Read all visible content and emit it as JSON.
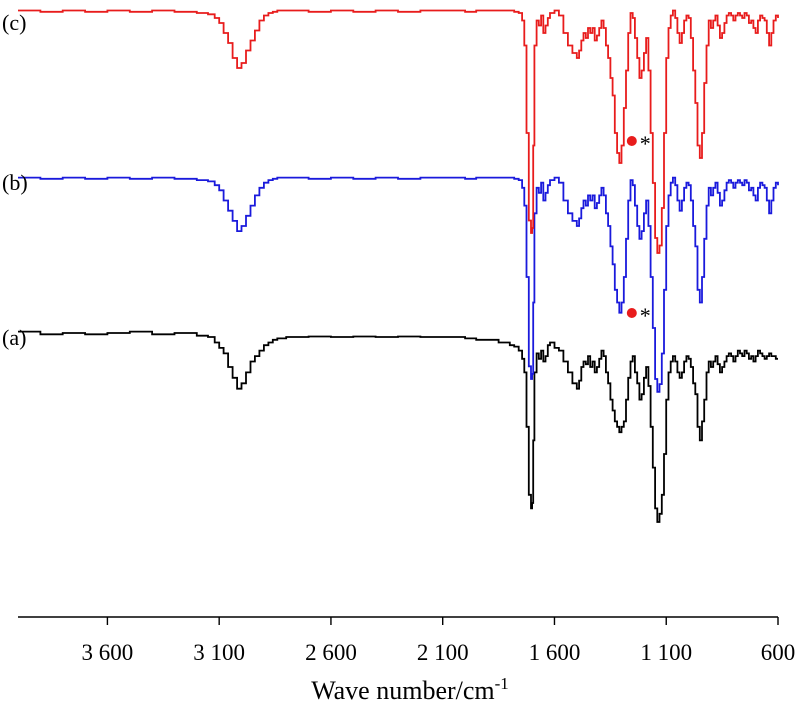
{
  "chart_data": {
    "type": "line",
    "xlabel_main": "Wave number/cm",
    "xlabel_sup": "-1",
    "x_reversed": true,
    "xlim": [
      4000,
      600
    ],
    "x_ticks": [
      3600,
      3100,
      2600,
      2100,
      1600,
      1100,
      600
    ],
    "x_tick_labels": [
      "3 600",
      "3 100",
      "2 600",
      "2 100",
      "1 600",
      "1 100",
      "600"
    ],
    "grid": false,
    "legend": "none",
    "series": [
      {
        "label": "(a)",
        "color": "#000000",
        "x": [
          4000,
          3900,
          3800,
          3700,
          3600,
          3500,
          3400,
          3300,
          3200,
          3150,
          3120,
          3100,
          3080,
          3060,
          3040,
          3020,
          3000,
          2980,
          2960,
          2940,
          2920,
          2900,
          2880,
          2860,
          2840,
          2800,
          2700,
          2600,
          2500,
          2400,
          2300,
          2200,
          2100,
          2000,
          1950,
          1900,
          1850,
          1800,
          1780,
          1760,
          1745,
          1735,
          1725,
          1715,
          1705,
          1700,
          1695,
          1690,
          1680,
          1670,
          1660,
          1650,
          1640,
          1630,
          1620,
          1600,
          1580,
          1560,
          1540,
          1520,
          1500,
          1490,
          1480,
          1470,
          1460,
          1450,
          1440,
          1430,
          1420,
          1410,
          1400,
          1390,
          1380,
          1370,
          1360,
          1350,
          1340,
          1330,
          1320,
          1310,
          1300,
          1290,
          1280,
          1270,
          1260,
          1250,
          1240,
          1230,
          1220,
          1210,
          1200,
          1190,
          1180,
          1170,
          1160,
          1150,
          1140,
          1130,
          1120,
          1110,
          1100,
          1090,
          1080,
          1070,
          1060,
          1050,
          1040,
          1030,
          1020,
          1010,
          1000,
          990,
          980,
          970,
          960,
          950,
          940,
          930,
          920,
          910,
          900,
          890,
          880,
          870,
          860,
          850,
          840,
          830,
          820,
          810,
          800,
          790,
          780,
          770,
          760,
          750,
          740,
          730,
          720,
          710,
          700,
          690,
          680,
          670,
          660,
          650,
          640,
          630,
          620,
          610,
          600
        ],
        "y": [
          0.95,
          0.94,
          0.945,
          0.94,
          0.945,
          0.95,
          0.94,
          0.945,
          0.935,
          0.93,
          0.91,
          0.89,
          0.87,
          0.82,
          0.78,
          0.74,
          0.76,
          0.8,
          0.84,
          0.86,
          0.88,
          0.9,
          0.91,
          0.92,
          0.925,
          0.93,
          0.932,
          0.93,
          0.932,
          0.93,
          0.932,
          0.93,
          0.93,
          0.925,
          0.92,
          0.92,
          0.91,
          0.9,
          0.895,
          0.88,
          0.85,
          0.8,
          0.6,
          0.35,
          0.3,
          0.32,
          0.55,
          0.8,
          0.87,
          0.85,
          0.88,
          0.84,
          0.86,
          0.9,
          0.91,
          0.89,
          0.88,
          0.84,
          0.8,
          0.76,
          0.74,
          0.77,
          0.82,
          0.84,
          0.83,
          0.86,
          0.82,
          0.84,
          0.8,
          0.82,
          0.85,
          0.88,
          0.86,
          0.8,
          0.76,
          0.7,
          0.66,
          0.62,
          0.6,
          0.58,
          0.6,
          0.62,
          0.7,
          0.78,
          0.84,
          0.86,
          0.8,
          0.76,
          0.7,
          0.72,
          0.78,
          0.82,
          0.75,
          0.6,
          0.45,
          0.3,
          0.25,
          0.28,
          0.35,
          0.5,
          0.7,
          0.8,
          0.84,
          0.86,
          0.84,
          0.8,
          0.78,
          0.8,
          0.84,
          0.86,
          0.85,
          0.82,
          0.76,
          0.72,
          0.6,
          0.55,
          0.62,
          0.7,
          0.8,
          0.84,
          0.82,
          0.84,
          0.86,
          0.83,
          0.8,
          0.82,
          0.84,
          0.86,
          0.87,
          0.86,
          0.84,
          0.86,
          0.88,
          0.87,
          0.86,
          0.88,
          0.87,
          0.85,
          0.86,
          0.84,
          0.86,
          0.88,
          0.87,
          0.86,
          0.85,
          0.86,
          0.87,
          0.86,
          0.86,
          0.85,
          0.85
        ]
      },
      {
        "label": "(b)",
        "color": "#1a1adc",
        "x": [
          4000,
          3900,
          3800,
          3700,
          3600,
          3500,
          3400,
          3300,
          3200,
          3150,
          3120,
          3100,
          3080,
          3060,
          3040,
          3020,
          3000,
          2980,
          2960,
          2940,
          2920,
          2900,
          2880,
          2860,
          2840,
          2800,
          2700,
          2600,
          2500,
          2400,
          2300,
          2200,
          2100,
          2000,
          1950,
          1900,
          1850,
          1800,
          1780,
          1760,
          1745,
          1735,
          1725,
          1715,
          1705,
          1700,
          1695,
          1690,
          1680,
          1670,
          1660,
          1650,
          1640,
          1630,
          1620,
          1600,
          1580,
          1560,
          1540,
          1520,
          1500,
          1490,
          1480,
          1470,
          1460,
          1450,
          1440,
          1430,
          1420,
          1410,
          1400,
          1390,
          1380,
          1370,
          1360,
          1350,
          1340,
          1330,
          1320,
          1310,
          1300,
          1290,
          1280,
          1270,
          1260,
          1250,
          1240,
          1230,
          1220,
          1210,
          1200,
          1190,
          1180,
          1170,
          1160,
          1150,
          1140,
          1130,
          1120,
          1110,
          1100,
          1090,
          1080,
          1070,
          1060,
          1050,
          1040,
          1030,
          1020,
          1010,
          1000,
          990,
          980,
          970,
          960,
          950,
          940,
          930,
          920,
          910,
          900,
          890,
          880,
          870,
          860,
          850,
          840,
          830,
          820,
          810,
          800,
          790,
          780,
          770,
          760,
          750,
          740,
          730,
          720,
          710,
          700,
          690,
          680,
          670,
          660,
          650,
          640,
          630,
          620,
          610,
          600
        ],
        "y": [
          0.99,
          0.985,
          0.99,
          0.985,
          0.99,
          0.985,
          0.99,
          0.985,
          0.98,
          0.975,
          0.96,
          0.94,
          0.9,
          0.86,
          0.82,
          0.78,
          0.8,
          0.84,
          0.88,
          0.92,
          0.95,
          0.97,
          0.98,
          0.985,
          0.99,
          0.99,
          0.985,
          0.99,
          0.985,
          0.99,
          0.985,
          0.99,
          0.99,
          0.985,
          0.99,
          0.99,
          0.99,
          0.99,
          0.985,
          0.98,
          0.95,
          0.88,
          0.6,
          0.25,
          0.2,
          0.22,
          0.5,
          0.85,
          0.95,
          0.93,
          0.97,
          0.9,
          0.93,
          0.96,
          0.98,
          0.99,
          0.97,
          0.9,
          0.85,
          0.82,
          0.8,
          0.83,
          0.87,
          0.9,
          0.88,
          0.92,
          0.9,
          0.92,
          0.87,
          0.89,
          0.92,
          0.95,
          0.92,
          0.85,
          0.8,
          0.72,
          0.65,
          0.55,
          0.5,
          0.46,
          0.5,
          0.6,
          0.75,
          0.9,
          0.98,
          0.96,
          0.88,
          0.8,
          0.75,
          0.78,
          0.85,
          0.9,
          0.8,
          0.6,
          0.4,
          0.2,
          0.15,
          0.18,
          0.3,
          0.55,
          0.8,
          0.92,
          0.97,
          0.99,
          0.96,
          0.9,
          0.86,
          0.9,
          0.95,
          0.97,
          0.96,
          0.9,
          0.8,
          0.72,
          0.55,
          0.5,
          0.6,
          0.75,
          0.88,
          0.95,
          0.92,
          0.95,
          0.97,
          0.93,
          0.88,
          0.9,
          0.94,
          0.97,
          0.98,
          0.97,
          0.95,
          0.97,
          0.98,
          0.97,
          0.96,
          0.98,
          0.97,
          0.94,
          0.95,
          0.92,
          0.9,
          0.95,
          0.97,
          0.96,
          0.95,
          0.9,
          0.85,
          0.9,
          0.95,
          0.97,
          0.96
        ]
      },
      {
        "label": "(c)",
        "color": "#e81c1c",
        "x": [
          4000,
          3900,
          3800,
          3700,
          3600,
          3500,
          3400,
          3300,
          3200,
          3150,
          3120,
          3100,
          3080,
          3060,
          3040,
          3020,
          3000,
          2980,
          2960,
          2940,
          2920,
          2900,
          2880,
          2860,
          2840,
          2800,
          2700,
          2600,
          2500,
          2400,
          2300,
          2200,
          2100,
          2000,
          1950,
          1900,
          1850,
          1800,
          1780,
          1760,
          1745,
          1735,
          1725,
          1715,
          1705,
          1700,
          1695,
          1690,
          1680,
          1670,
          1660,
          1650,
          1640,
          1630,
          1620,
          1600,
          1580,
          1560,
          1540,
          1520,
          1500,
          1490,
          1480,
          1470,
          1460,
          1450,
          1440,
          1430,
          1420,
          1410,
          1400,
          1390,
          1380,
          1370,
          1360,
          1350,
          1340,
          1330,
          1320,
          1310,
          1300,
          1290,
          1280,
          1270,
          1260,
          1250,
          1240,
          1230,
          1220,
          1210,
          1200,
          1190,
          1180,
          1170,
          1160,
          1150,
          1140,
          1130,
          1120,
          1110,
          1100,
          1090,
          1080,
          1070,
          1060,
          1050,
          1040,
          1030,
          1020,
          1010,
          1000,
          990,
          980,
          970,
          960,
          950,
          940,
          930,
          920,
          910,
          900,
          890,
          880,
          870,
          860,
          850,
          840,
          830,
          820,
          810,
          800,
          790,
          780,
          770,
          760,
          750,
          740,
          730,
          720,
          710,
          700,
          690,
          680,
          670,
          660,
          650,
          640,
          630,
          620,
          610,
          600
        ],
        "y": [
          0.99,
          0.985,
          0.99,
          0.985,
          0.99,
          0.985,
          0.99,
          0.985,
          0.98,
          0.975,
          0.96,
          0.94,
          0.9,
          0.86,
          0.8,
          0.76,
          0.78,
          0.83,
          0.87,
          0.91,
          0.95,
          0.97,
          0.98,
          0.985,
          0.99,
          0.99,
          0.985,
          0.99,
          0.985,
          0.99,
          0.985,
          0.99,
          0.99,
          0.985,
          0.99,
          0.99,
          0.99,
          0.99,
          0.985,
          0.98,
          0.95,
          0.85,
          0.5,
          0.15,
          0.1,
          0.12,
          0.45,
          0.85,
          0.95,
          0.93,
          0.97,
          0.9,
          0.93,
          0.96,
          0.98,
          0.99,
          0.97,
          0.9,
          0.85,
          0.82,
          0.8,
          0.83,
          0.87,
          0.9,
          0.88,
          0.92,
          0.9,
          0.92,
          0.87,
          0.89,
          0.92,
          0.95,
          0.92,
          0.85,
          0.8,
          0.72,
          0.65,
          0.5,
          0.42,
          0.38,
          0.45,
          0.6,
          0.75,
          0.9,
          0.98,
          0.96,
          0.88,
          0.8,
          0.72,
          0.75,
          0.82,
          0.88,
          0.75,
          0.5,
          0.3,
          0.08,
          0.02,
          0.05,
          0.2,
          0.5,
          0.8,
          0.92,
          0.97,
          0.99,
          0.96,
          0.9,
          0.86,
          0.9,
          0.95,
          0.97,
          0.96,
          0.88,
          0.75,
          0.62,
          0.45,
          0.4,
          0.5,
          0.7,
          0.85,
          0.95,
          0.92,
          0.95,
          0.97,
          0.93,
          0.88,
          0.9,
          0.94,
          0.97,
          0.98,
          0.97,
          0.95,
          0.97,
          0.98,
          0.97,
          0.96,
          0.98,
          0.97,
          0.94,
          0.95,
          0.92,
          0.9,
          0.95,
          0.97,
          0.96,
          0.95,
          0.9,
          0.85,
          0.9,
          0.95,
          0.97,
          0.96
        ]
      }
    ],
    "annotations": [
      {
        "series": "(b)",
        "x": 1254,
        "marker_color": "#e81c1c",
        "text": "*"
      },
      {
        "series": "(c)",
        "x": 1254,
        "marker_color": "#e81c1c",
        "text": "*"
      }
    ]
  }
}
